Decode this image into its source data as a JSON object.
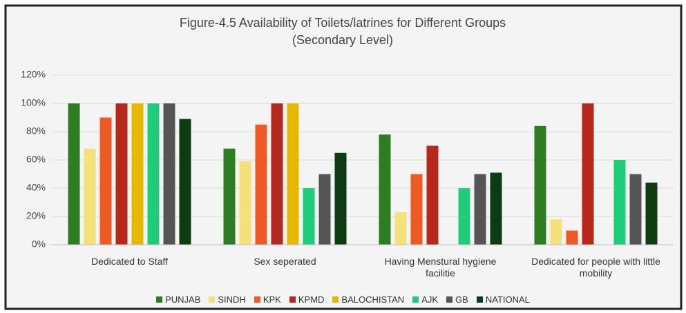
{
  "chart_data": {
    "type": "bar",
    "title": "Figure-4.5 Availability of Toilets/latrines for Different Groups",
    "subtitle": "(Secondary Level)",
    "categories": [
      "Dedicated to Staff",
      "Sex seperated",
      "Having Menstural hygiene facilitie",
      "Dedicated for people with little mobility"
    ],
    "series": [
      {
        "name": "PUNJAB",
        "color": "#2e7d22",
        "values": [
          100,
          68,
          78,
          84
        ]
      },
      {
        "name": "SINDH",
        "color": "#f5e17a",
        "values": [
          68,
          59,
          23,
          18
        ]
      },
      {
        "name": "KPK",
        "color": "#ee5a24",
        "values": [
          90,
          85,
          50,
          10
        ]
      },
      {
        "name": "KPMD",
        "color": "#b5281b",
        "values": [
          100,
          100,
          70,
          100
        ]
      },
      {
        "name": "BALOCHISTAN",
        "color": "#e6b800",
        "values": [
          100,
          100,
          0,
          0
        ]
      },
      {
        "name": "AJK",
        "color": "#1fcc7a",
        "values": [
          100,
          40,
          40,
          60
        ]
      },
      {
        "name": "GB",
        "color": "#555555",
        "values": [
          100,
          50,
          50,
          50
        ]
      },
      {
        "name": "NATIONAL",
        "color": "#0d3b12",
        "values": [
          89,
          65,
          51,
          44
        ]
      }
    ],
    "ylim": [
      0,
      120
    ],
    "yticks": [
      {
        "value": 0,
        "label": "0%"
      },
      {
        "value": 20,
        "label": "20%"
      },
      {
        "value": 40,
        "label": "40%"
      },
      {
        "value": 60,
        "label": "60%"
      },
      {
        "value": 80,
        "label": "80%"
      },
      {
        "value": 100,
        "label": "100%"
      },
      {
        "value": 120,
        "label": "120%"
      }
    ],
    "grid": true,
    "legend": "bottom"
  }
}
